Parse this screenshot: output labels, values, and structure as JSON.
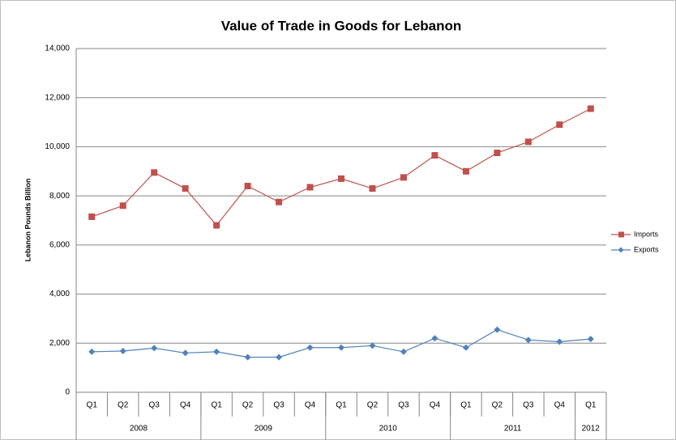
{
  "chart_data": {
    "type": "line",
    "title": "Value of Trade in Goods for Lebanon",
    "y_label": "Lebanon Pounds Billion",
    "categories": [
      "Q1",
      "Q2",
      "Q3",
      "Q4",
      "Q1",
      "Q2",
      "Q3",
      "Q4",
      "Q1",
      "Q2",
      "Q3",
      "Q4",
      "Q1",
      "Q2",
      "Q3",
      "Q4",
      "Q1"
    ],
    "category_groups": [
      "2008",
      "2009",
      "2010",
      "2011",
      "2012"
    ],
    "series": [
      {
        "name": "Imports",
        "color": "#c0504d",
        "marker": "square",
        "values": [
          7150,
          7600,
          8950,
          8300,
          6800,
          8400,
          7750,
          8350,
          8700,
          8300,
          8750,
          9650,
          9000,
          9750,
          10200,
          10900,
          11550
        ]
      },
      {
        "name": "Exports",
        "color": "#4f81bd",
        "marker": "diamond",
        "values": [
          1650,
          1680,
          1800,
          1600,
          1650,
          1430,
          1430,
          1820,
          1820,
          1900,
          1650,
          2200,
          1820,
          2550,
          2130,
          2060,
          2170
        ]
      }
    ],
    "ylim": [
      0,
      14000
    ],
    "yticks": [
      0,
      {
        "value": 2000,
        "label": "2,000"
      },
      {
        "value": 4000,
        "label": "4,000"
      },
      {
        "value": 6000,
        "label": "6,000"
      },
      {
        "value": 8000,
        "label": "8,000"
      },
      {
        "value": 10000,
        "label": "10,000"
      },
      {
        "value": 12000,
        "label": "12,000"
      },
      {
        "value": 14000,
        "label": "14,000"
      }
    ],
    "grid": true,
    "legend": "right"
  }
}
